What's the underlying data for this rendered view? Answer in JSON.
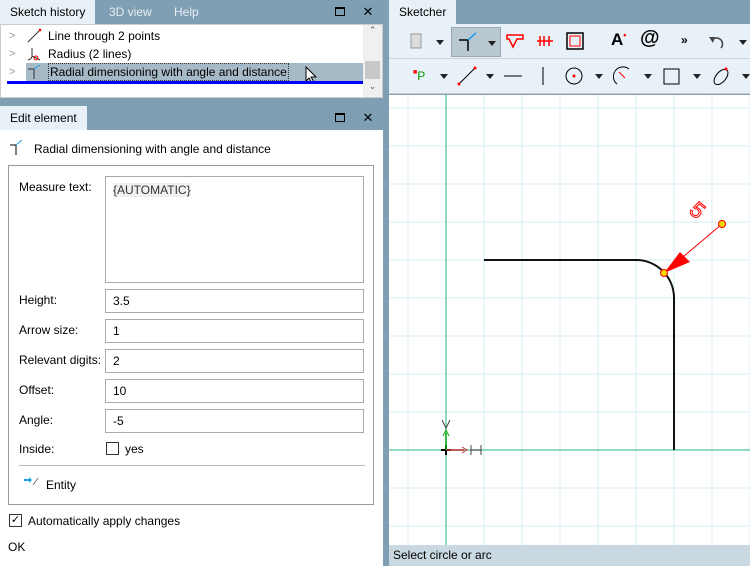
{
  "left_tabs": [
    "Sketch history",
    "3D view",
    "Help"
  ],
  "history": [
    {
      "label": "Line through 2 points",
      "icon": "line-icon"
    },
    {
      "label": "Radius (2 lines)",
      "icon": "radius-icon"
    },
    {
      "label": "Radial dimensioning with angle and distance",
      "icon": "radial-dimension-icon",
      "selected": true
    }
  ],
  "edit": {
    "tab": "Edit element",
    "title": "Radial dimensioning with angle and distance",
    "fields": [
      {
        "label": "Measure text:",
        "value": "{AUTOMATIC}"
      },
      {
        "label": "Height:",
        "value": "3.5"
      },
      {
        "label": "Arrow size:",
        "value": "1"
      },
      {
        "label": "Relevant digits:",
        "value": "2"
      },
      {
        "label": "Offset:",
        "value": "10"
      },
      {
        "label": "Angle:",
        "value": "-5"
      }
    ],
    "inside_label": "Inside:",
    "inside_option": "yes",
    "inside_checked": false,
    "entity": "Entity",
    "auto_apply": "Automatically apply changes",
    "auto_apply_checked": true,
    "ok": "OK"
  },
  "sketcher": {
    "tab": "Sketcher",
    "more": "»",
    "status": "Select circle or arc",
    "dimension_text": "5"
  },
  "colors": {
    "accent": "#0000ff",
    "panel_header": "#7f9fb4",
    "tab_active": "#e8f1f7",
    "grid": "#d4eef6",
    "axis": "#6fcfa8",
    "dimension": "#ff0000"
  }
}
